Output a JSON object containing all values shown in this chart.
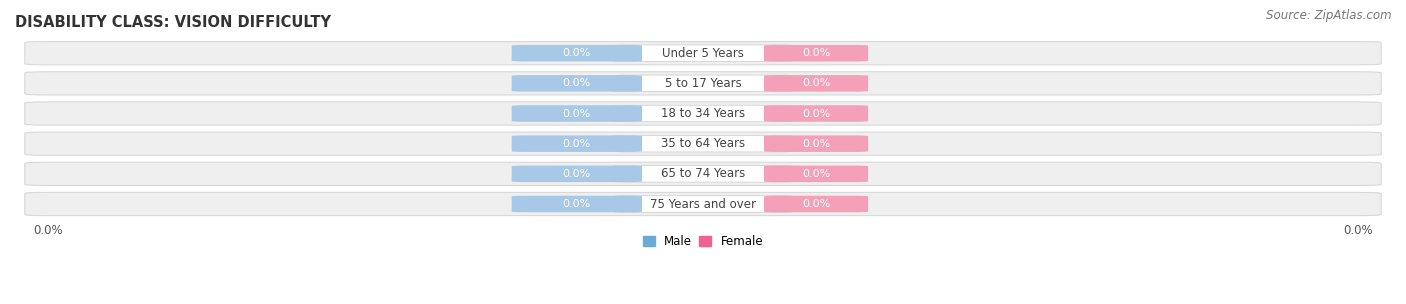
{
  "title": "DISABILITY CLASS: VISION DIFFICULTY",
  "source": "Source: ZipAtlas.com",
  "categories": [
    "Under 5 Years",
    "5 to 17 Years",
    "18 to 34 Years",
    "35 to 64 Years",
    "65 to 74 Years",
    "75 Years and over"
  ],
  "male_values": [
    0.0,
    0.0,
    0.0,
    0.0,
    0.0,
    0.0
  ],
  "female_values": [
    0.0,
    0.0,
    0.0,
    0.0,
    0.0,
    0.0
  ],
  "male_color": "#a8c8e8",
  "female_color": "#f4a0b8",
  "bar_track_color": "#efefef",
  "bar_track_edge": "#d8d8d8",
  "male_legend_color": "#6aaad4",
  "female_legend_color": "#f06090",
  "title_fontsize": 10.5,
  "cat_fontsize": 8.5,
  "val_fontsize": 8.0,
  "tick_fontsize": 8.5,
  "source_fontsize": 8.5,
  "background_color": "#ffffff",
  "label_text_color": "#444444",
  "value_text_color": "#ffffff"
}
